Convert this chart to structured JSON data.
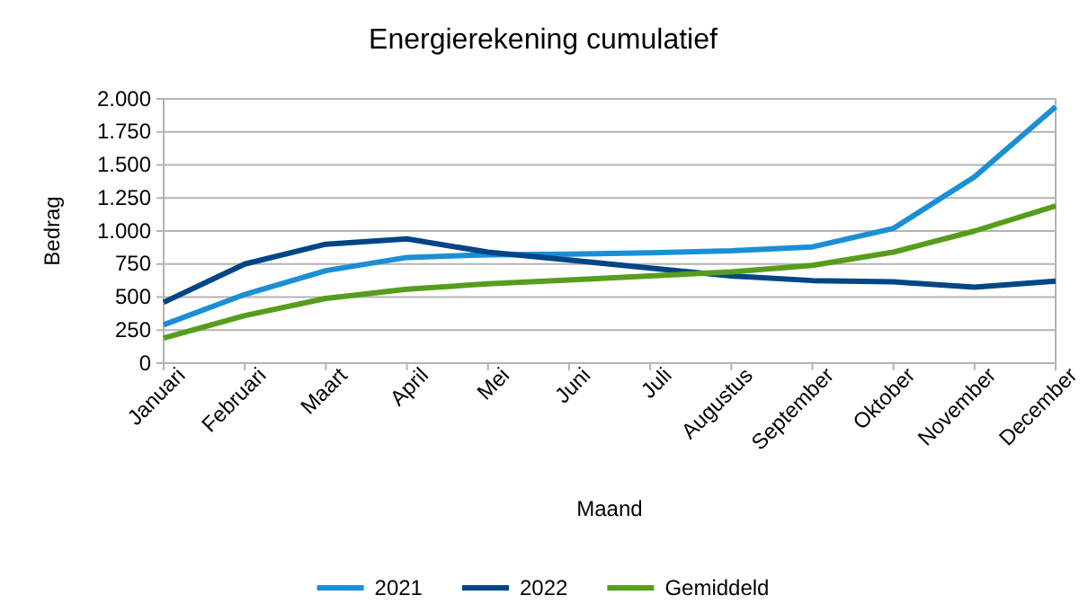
{
  "chart_data": {
    "type": "line",
    "title": "Energierekening cumulatief",
    "xlabel": "Maand",
    "ylabel": "Bedrag",
    "categories": [
      "Januari",
      "Februari",
      "Maart",
      "April",
      "Mei",
      "Juni",
      "Juli",
      "Augustus",
      "September",
      "Oktober",
      "November",
      "December"
    ],
    "series": [
      {
        "name": "2021",
        "color": "#1a8fd6",
        "values": [
          290,
          520,
          700,
          800,
          820,
          825,
          835,
          850,
          880,
          1020,
          1410,
          1940
        ]
      },
      {
        "name": "2022",
        "color": "#004586",
        "values": [
          460,
          750,
          900,
          940,
          840,
          780,
          720,
          660,
          625,
          615,
          575,
          620
        ]
      },
      {
        "name": "Gemiddeld",
        "color": "#579d1c",
        "values": [
          190,
          360,
          490,
          560,
          600,
          630,
          660,
          690,
          740,
          840,
          1000,
          1190
        ]
      }
    ],
    "ylim": [
      0,
      2000
    ],
    "yticks": [
      0,
      {
        "value": 250,
        "label": "250"
      },
      {
        "value": 500,
        "label": "500"
      },
      {
        "value": 750,
        "label": "750"
      },
      {
        "value": 1000,
        "label": "1.000"
      },
      {
        "value": 1250,
        "label": "1.250"
      },
      {
        "value": 1500,
        "label": "1.500"
      },
      {
        "value": 1750,
        "label": "1.750"
      },
      {
        "value": 2000,
        "label": "2.000"
      }
    ],
    "grid": "y",
    "legend": "bottom",
    "marker": "none",
    "line_style": "solid"
  }
}
